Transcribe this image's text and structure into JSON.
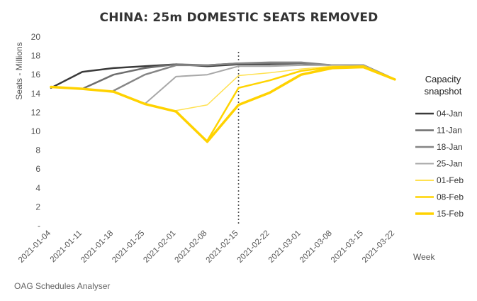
{
  "chart_data": {
    "type": "line",
    "title": "CHINA: 25m DOMESTIC SEATS REMOVED",
    "ylabel": "Seats - Millions",
    "xlabel": "Week",
    "ylim": [
      0,
      20
    ],
    "yticks": [
      "-",
      "2",
      "4",
      "6",
      "8",
      "10",
      "12",
      "14",
      "16",
      "18",
      "20"
    ],
    "grid": false,
    "legend_title": "Capacity snapshot",
    "legend_placement": "right",
    "source": "OAG Schedules Analyser",
    "reference_line": {
      "x": "2021-02-15",
      "style": "dotted"
    },
    "categories": [
      "2021-01-04",
      "2021-01-11",
      "2021-01-18",
      "2021-01-25",
      "2021-02-01",
      "2021-02-08",
      "2021-02-15",
      "2021-02-22",
      "2021-03-01",
      "2021-03-08",
      "2021-03-15",
      "2021-03-22"
    ],
    "series": [
      {
        "name": "04-Jan",
        "color": "#3a3a3a",
        "width": 2.5,
        "values": [
          14.6,
          16.3,
          16.7,
          16.9,
          17.1,
          16.9,
          17.1,
          17.1,
          17.2,
          17.0,
          17.0,
          15.5
        ]
      },
      {
        "name": "11-Jan",
        "color": "#6e6e6e",
        "width": 2.5,
        "values": [
          null,
          14.5,
          16.0,
          16.7,
          17.1,
          17.0,
          17.2,
          17.2,
          17.2,
          17.0,
          17.0,
          15.5
        ]
      },
      {
        "name": "18-Jan",
        "color": "#858585",
        "width": 2.5,
        "values": [
          null,
          null,
          14.3,
          16.0,
          17.0,
          17.0,
          17.2,
          17.3,
          17.3,
          17.0,
          17.0,
          15.5
        ]
      },
      {
        "name": "25-Jan",
        "color": "#a8a8a8",
        "width": 2,
        "values": [
          null,
          null,
          null,
          12.9,
          15.8,
          16.0,
          16.9,
          16.9,
          17.0,
          17.0,
          17.0,
          15.5
        ]
      },
      {
        "name": "01-Feb",
        "color": "#ffe150",
        "width": 1.5,
        "values": [
          null,
          null,
          null,
          null,
          12.2,
          12.8,
          15.9,
          16.2,
          16.6,
          16.9,
          16.9,
          15.5
        ]
      },
      {
        "name": "08-Feb",
        "color": "#ffd400",
        "width": 2.5,
        "values": [
          null,
          null,
          null,
          null,
          null,
          9.0,
          14.6,
          15.4,
          16.4,
          16.8,
          16.9,
          15.5
        ]
      },
      {
        "name": "15-Feb",
        "color": "#ffd200",
        "width": 3.5,
        "values": [
          14.7,
          14.5,
          14.2,
          12.9,
          12.1,
          8.9,
          12.8,
          14.1,
          16.0,
          16.7,
          16.8,
          15.5
        ]
      }
    ]
  }
}
